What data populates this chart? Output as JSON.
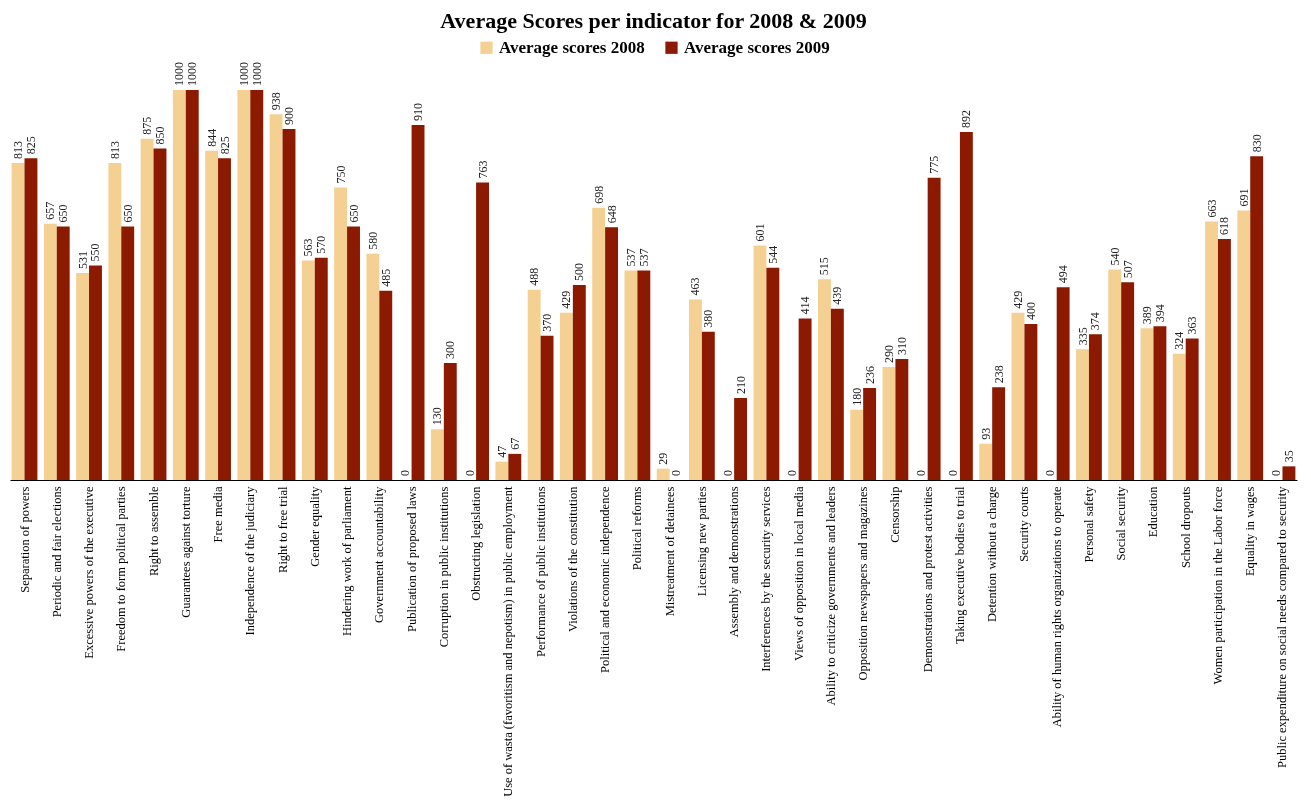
{
  "chart_data": {
    "type": "bar",
    "title": "Average Scores per indicator for 2008 & 2009",
    "categories": [
      "Separation of powers",
      "Periodic and fair elections",
      "Excessive powers of the executive",
      "Freedom to form political parties",
      "Right to assemble",
      "Guarantees against torture",
      "Free media",
      "Independence of the judiciary",
      "Right to free trial",
      "Gender equality",
      "Hindering work of parliament",
      "Government accountability",
      "Publication of proposed laws",
      "Corruption in public institutions",
      "Obstructing legislation",
      "Use of wasta (favoritism and nepotism) in public employment",
      "Performance of public institutions",
      "Violations of the constitution",
      "Political and economic independence",
      "Political reforms",
      "Mistreatment of detainees",
      "Licensing new parties",
      "Assembly and demonstrations",
      "Interferences by the security services",
      "Views of opposition in local media",
      "Ability to criticize governments and leaders",
      "Opposition newspapers and magazines",
      "Censorship",
      "Demonstrations and protest activities",
      "Taking executive bodies to trial",
      "Detention without a charge",
      "Security courts",
      "Ability of human rights organizations to operate",
      "Personal safety",
      "Social security",
      "Education",
      "School dropouts",
      "Women participation in the Labor force",
      "Equality in wages",
      "Public expenditure on social needs compared to security"
    ],
    "series": [
      {
        "name": "Average scores 2008",
        "color": "#f5d093",
        "values": [
          813,
          657,
          531,
          813,
          875,
          1000,
          844,
          1000,
          938,
          563,
          750,
          580,
          0,
          130,
          0,
          47,
          488,
          429,
          698,
          537,
          29,
          463,
          0,
          601,
          0,
          515,
          180,
          290,
          0,
          0,
          93,
          429,
          0,
          335,
          540,
          389,
          324,
          663,
          691,
          0
        ]
      },
      {
        "name": "Average scores 2009",
        "color": "#8b1a00",
        "values": [
          825,
          650,
          550,
          650,
          850,
          1000,
          825,
          1000,
          900,
          570,
          650,
          485,
          910,
          300,
          763,
          67,
          370,
          500,
          648,
          537,
          0,
          380,
          210,
          544,
          414,
          439,
          236,
          310,
          775,
          892,
          238,
          400,
          494,
          374,
          507,
          394,
          363,
          618,
          830,
          35
        ]
      }
    ],
    "data_labels": true,
    "tick_labels": "x",
    "grid": false,
    "legend": "top"
  }
}
